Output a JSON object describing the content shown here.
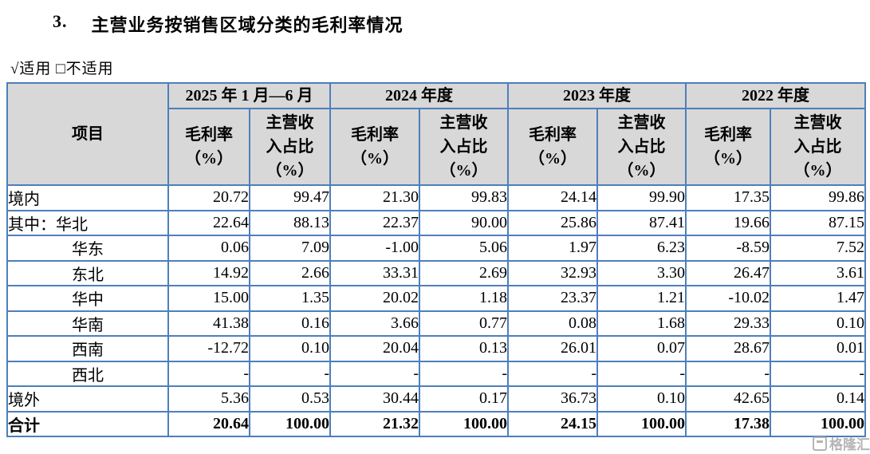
{
  "page": {
    "section_number": "3.",
    "section_title": "主营业务按销售区域分类的毛利率情况",
    "applicability_text": "√适用 □不适用",
    "watermark_text": "格隆汇"
  },
  "colors": {
    "table_border": "#4e7fbb",
    "header_bg": "#d8d8d8",
    "text": "#000000",
    "watermark": "#a9a9a9"
  },
  "table": {
    "item_header": "项目",
    "period_headers": [
      "2025 年 1 月—6 月",
      "2024 年度",
      "2023 年度",
      "2022 年度"
    ],
    "sub_header_margin": "毛利率\n（%）",
    "sub_header_share": "主营收\n入占比\n（%）",
    "rows": [
      {
        "label": "境内",
        "align": "left",
        "bold": false,
        "values": [
          "20.72",
          "99.47",
          "21.30",
          "99.83",
          "24.14",
          "99.90",
          "17.35",
          "99.86"
        ]
      },
      {
        "label": "其中：华北",
        "align": "left",
        "bold": false,
        "values": [
          "22.64",
          "88.13",
          "22.37",
          "90.00",
          "25.86",
          "87.41",
          "19.66",
          "87.15"
        ]
      },
      {
        "label": "华东",
        "align": "center",
        "bold": false,
        "values": [
          "0.06",
          "7.09",
          "-1.00",
          "5.06",
          "1.97",
          "6.23",
          "-8.59",
          "7.52"
        ]
      },
      {
        "label": "东北",
        "align": "center",
        "bold": false,
        "values": [
          "14.92",
          "2.66",
          "33.31",
          "2.69",
          "32.93",
          "3.30",
          "26.47",
          "3.61"
        ]
      },
      {
        "label": "华中",
        "align": "center",
        "bold": false,
        "values": [
          "15.00",
          "1.35",
          "20.02",
          "1.18",
          "23.37",
          "1.21",
          "-10.02",
          "1.47"
        ]
      },
      {
        "label": "华南",
        "align": "center",
        "bold": false,
        "values": [
          "41.38",
          "0.16",
          "3.66",
          "0.77",
          "0.08",
          "1.68",
          "29.33",
          "0.10"
        ]
      },
      {
        "label": "西南",
        "align": "center",
        "bold": false,
        "values": [
          "-12.72",
          "0.10",
          "20.04",
          "0.13",
          "26.01",
          "0.07",
          "28.67",
          "0.01"
        ]
      },
      {
        "label": "西北",
        "align": "center",
        "bold": false,
        "values": [
          "-",
          "-",
          "-",
          "-",
          "-",
          "-",
          "-",
          "-"
        ]
      },
      {
        "label": "境外",
        "align": "left",
        "bold": false,
        "values": [
          "5.36",
          "0.53",
          "30.44",
          "0.17",
          "36.73",
          "0.10",
          "42.65",
          "0.14"
        ]
      },
      {
        "label": "合计",
        "align": "left",
        "bold": true,
        "values": [
          "20.64",
          "100.00",
          "21.32",
          "100.00",
          "24.15",
          "100.00",
          "17.38",
          "100.00"
        ]
      }
    ]
  }
}
